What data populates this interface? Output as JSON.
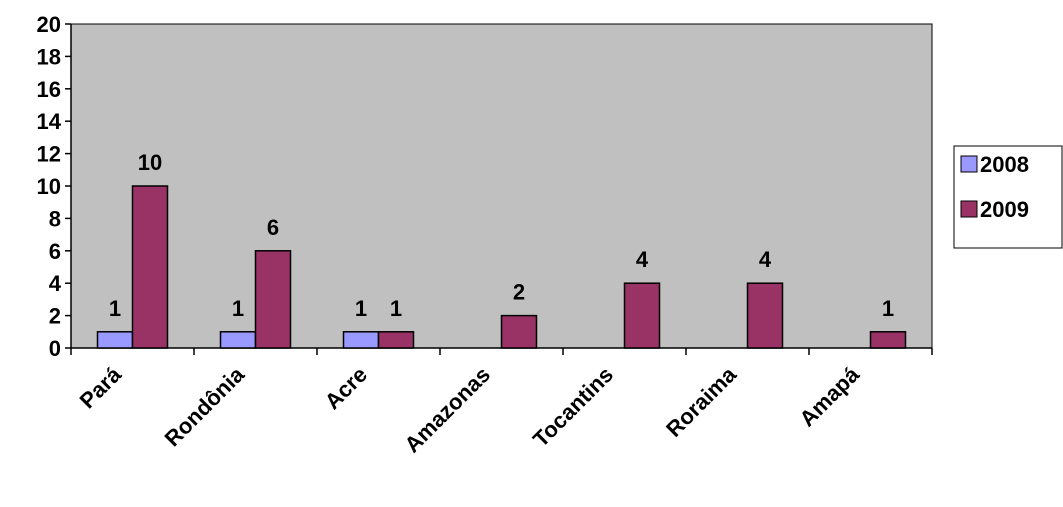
{
  "chart_data": {
    "type": "bar",
    "title": "",
    "xlabel": "",
    "ylabel": "",
    "ylim": [
      0,
      20
    ],
    "ytick_step": 2,
    "yticks": [
      "0",
      "2",
      "4",
      "6",
      "8",
      "10",
      "12",
      "14",
      "16",
      "18",
      "20"
    ],
    "grid": false,
    "plot_background": "#C0C0C0",
    "legend_position": "right",
    "categories": [
      "Pará",
      "Rondônia",
      "Acre",
      "Amazonas",
      "Tocantins",
      "Roraima",
      "Amapá"
    ],
    "series": [
      {
        "name": "2008",
        "color": "#9999FF",
        "values": [
          1,
          1,
          1,
          null,
          null,
          null,
          null
        ]
      },
      {
        "name": "2009",
        "color": "#993366",
        "values": [
          10,
          6,
          1,
          2,
          4,
          4,
          1
        ]
      }
    ]
  }
}
